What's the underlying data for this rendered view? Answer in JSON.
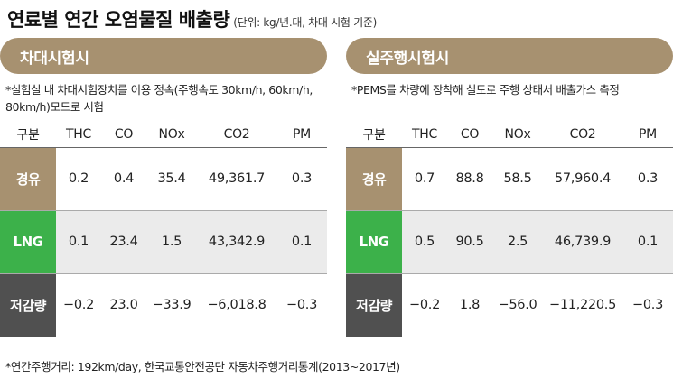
{
  "title": "연료별 연간 오염물질 배출량",
  "unit_note": "(단위: kg/년.대, 차대 시험 기준)",
  "footnote": "*연간주행거리: 192km/day, 한국교통안전공단 자동차주행거리통계(2013~2017년)",
  "colors": {
    "header": "#a79170",
    "diesel": "#a79170",
    "lng": "#3cb14a",
    "reduction": "#505050",
    "gray_row": "#ebebeb"
  },
  "panels": [
    {
      "title": "차대시험시",
      "note": "*실험실 내 차대시험장치를 이용 정속(주행속도 30km/h, 60km/h, 80km/h)모드로 시험",
      "columns": [
        "구분",
        "THC",
        "CO",
        "NOx",
        "CO2",
        "PM"
      ],
      "rows": [
        {
          "label": "경유",
          "values": [
            "0.2",
            "0.4",
            "35.4",
            "49,361.7",
            "0.3"
          ]
        },
        {
          "label": "LNG",
          "values": [
            "0.1",
            "23.4",
            "1.5",
            "43,342.9",
            "0.1"
          ]
        },
        {
          "label": "저감량",
          "values": [
            "−0.2",
            "23.0",
            "−33.9",
            "−6,018.8",
            "−0.3"
          ]
        }
      ]
    },
    {
      "title": "실주행시험시",
      "note": "*PEMS를 차량에 장착해 실도로 주행 상태서 배출가스 측정",
      "columns": [
        "구분",
        "THC",
        "CO",
        "NOx",
        "CO2",
        "PM"
      ],
      "rows": [
        {
          "label": "경유",
          "values": [
            "0.7",
            "88.8",
            "58.5",
            "57,960.4",
            "0.3"
          ]
        },
        {
          "label": "LNG",
          "values": [
            "0.5",
            "90.5",
            "2.5",
            "46,739.9",
            "0.1"
          ]
        },
        {
          "label": "저감량",
          "values": [
            "−0.2",
            "1.8",
            "−56.0",
            "−11,220.5",
            "−0.3"
          ]
        }
      ]
    }
  ]
}
